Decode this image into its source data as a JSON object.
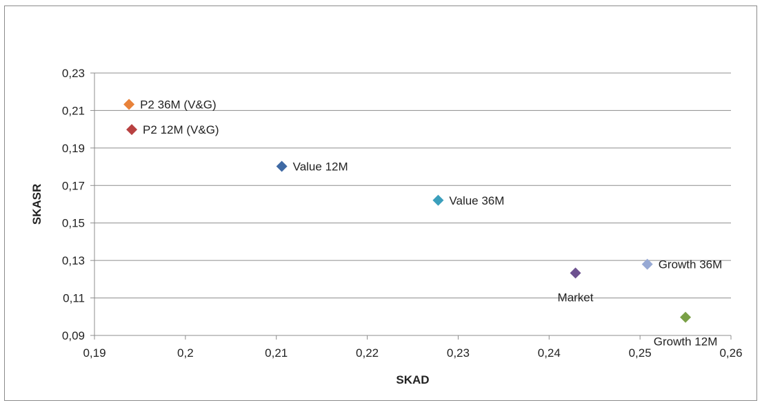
{
  "chart_data": {
    "type": "scatter",
    "xlabel": "SKAD",
    "ylabel": "SKASR",
    "xlim": [
      0.19,
      0.26
    ],
    "ylim": [
      0.09,
      0.23
    ],
    "x_ticks": [
      "0,19",
      "0,2",
      "0,21",
      "0,22",
      "0,23",
      "0,24",
      "0,25",
      "0,26"
    ],
    "y_ticks": [
      "0,09",
      "0,11",
      "0,13",
      "0,15",
      "0,17",
      "0,19",
      "0,21",
      "0,23"
    ],
    "x_tick_values": [
      0.19,
      0.2,
      0.21,
      0.22,
      0.23,
      0.24,
      0.25,
      0.26
    ],
    "y_tick_values": [
      0.09,
      0.11,
      0.13,
      0.15,
      0.17,
      0.19,
      0.21,
      0.23
    ],
    "grid": "horizontal",
    "marker": "diamond",
    "points": [
      {
        "label": "P2 36M (V&G)",
        "x": 0.1938,
        "y": 0.2133,
        "color": "#e8823a",
        "label_position": "right"
      },
      {
        "label": "P2 12M (V&G)",
        "x": 0.1941,
        "y": 0.1998,
        "color": "#b84141",
        "label_position": "right"
      },
      {
        "label": "Value 12M",
        "x": 0.2106,
        "y": 0.1802,
        "color": "#3e69a4",
        "label_position": "right"
      },
      {
        "label": "Value 36M",
        "x": 0.2278,
        "y": 0.1621,
        "color": "#3b9fbc",
        "label_position": "right"
      },
      {
        "label": "Market",
        "x": 0.2429,
        "y": 0.1233,
        "color": "#6d5190",
        "label_position": "below"
      },
      {
        "label": "Growth 36M",
        "x": 0.2508,
        "y": 0.128,
        "color": "#97a9d4",
        "label_position": "right"
      },
      {
        "label": "Growth 12M",
        "x": 0.255,
        "y": 0.0997,
        "color": "#79a046",
        "label_position": "below"
      }
    ]
  }
}
